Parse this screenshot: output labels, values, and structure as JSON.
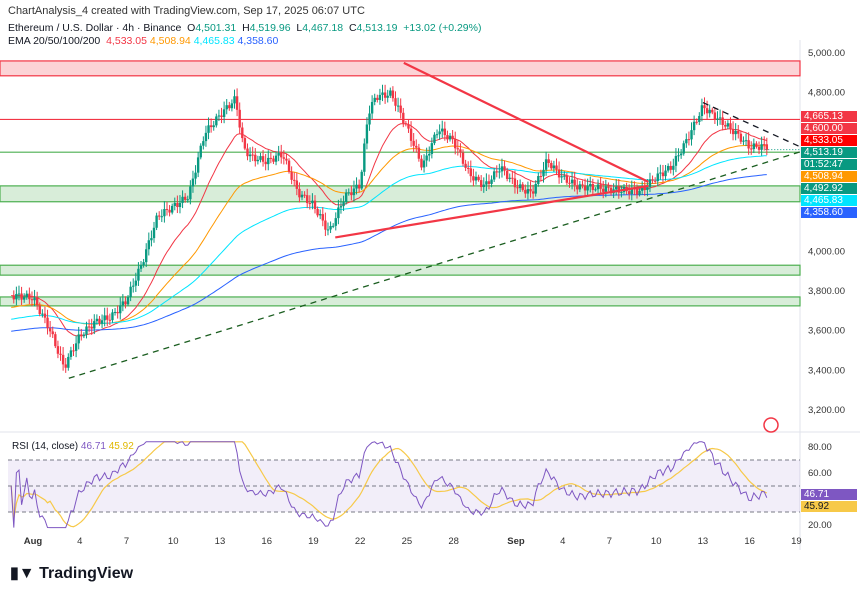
{
  "header": {
    "caption": "ChartAnalysis_4 created with TradingView.com, Sep 17, 2025 06:07 UTC"
  },
  "symbol": {
    "name": "Ethereum / U.S. Dollar · 4h · Binance",
    "o_label": "O",
    "open": "4,501.31",
    "h_label": "H",
    "high": "4,519.96",
    "l_label": "L",
    "low": "4,467.18",
    "c_label": "C",
    "close": "4,513.19",
    "change": "+13.02 (+0.29%)"
  },
  "ema": {
    "label": "EMA 20/50/100/200",
    "values": [
      "4,533.05",
      "4,508.94",
      "4,465.83",
      "4,358.60"
    ],
    "colors": [
      "#f23645",
      "#ff9800",
      "#00e5ff",
      "#2962ff"
    ]
  },
  "price_labels": [
    {
      "text": "4,665.13",
      "color": "#f23645"
    },
    {
      "text": "4,600.00",
      "color": "#f23645"
    },
    {
      "text": "4,533.05",
      "color": "#ff0000"
    },
    {
      "text": "4,513.19",
      "color": "#089981"
    },
    {
      "text": "01:52:47",
      "color": "#089981"
    },
    {
      "text": "4,508.94",
      "color": "#ff9800"
    },
    {
      "text": "4,492.92",
      "color": "#089981"
    },
    {
      "text": "4,465.83",
      "color": "#00e5ff"
    },
    {
      "text": "4,358.60",
      "color": "#2962ff"
    }
  ],
  "rsi": {
    "label": "RSI (14, close)",
    "value": "46.71",
    "ma": "45.92",
    "value_color": "#7e57c2",
    "ma_color": "#f7c948"
  },
  "logo": "TradingView",
  "colors": {
    "up": "#089981",
    "down": "#f23645",
    "support": "#4caf50",
    "resistance": "#f23645"
  },
  "chart_data": {
    "type": "candlestick",
    "title": "Ethereum / U.S. Dollar · 4h · Binance",
    "ylim": [
      3100,
      5050
    ],
    "y_ticks": [
      "5,000.00",
      "4,800.00",
      "4,000.00",
      "3,800.00",
      "3,600.00",
      "3,400.00",
      "3,200.00"
    ],
    "y_tick_values": [
      5000,
      4800,
      4000,
      3800,
      3600,
      3400,
      3200
    ],
    "x_ticks": [
      "Aug",
      "4",
      "7",
      "10",
      "13",
      "16",
      "19",
      "22",
      "25",
      "28",
      "Sep",
      "4",
      "7",
      "10",
      "13",
      "16",
      "19"
    ],
    "x_tick_days": [
      0,
      3,
      6,
      9,
      12,
      15,
      18,
      21,
      24,
      27,
      31,
      34,
      37,
      40,
      43,
      46,
      49
    ],
    "approx_close_by_day": [
      [
        -1,
        3800
      ],
      [
        0,
        3780
      ],
      [
        1,
        3620
      ],
      [
        2,
        3400
      ],
      [
        2.5,
        3480
      ],
      [
        3,
        3550
      ],
      [
        4,
        3620
      ],
      [
        5,
        3650
      ],
      [
        6,
        3750
      ],
      [
        7,
        3950
      ],
      [
        8,
        4200
      ],
      [
        9,
        4250
      ],
      [
        10,
        4300
      ],
      [
        11,
        4600
      ],
      [
        12,
        4680
      ],
      [
        13,
        4750
      ],
      [
        13.5,
        4500
      ],
      [
        14,
        4450
      ],
      [
        15,
        4430
      ],
      [
        16,
        4480
      ],
      [
        17,
        4300
      ],
      [
        18,
        4250
      ],
      [
        19,
        4120
      ],
      [
        20,
        4300
      ],
      [
        21,
        4350
      ],
      [
        21.5,
        4700
      ],
      [
        22,
        4780
      ],
      [
        23,
        4780
      ],
      [
        24,
        4600
      ],
      [
        25,
        4400
      ],
      [
        26,
        4600
      ],
      [
        27,
        4550
      ],
      [
        28,
        4400
      ],
      [
        29,
        4350
      ],
      [
        30,
        4450
      ],
      [
        31,
        4350
      ],
      [
        32,
        4300
      ],
      [
        33,
        4450
      ],
      [
        34,
        4350
      ],
      [
        35,
        4300
      ],
      [
        36,
        4300
      ],
      [
        37,
        4300
      ],
      [
        38,
        4310
      ],
      [
        39,
        4320
      ],
      [
        40,
        4400
      ],
      [
        41,
        4450
      ],
      [
        42,
        4580
      ],
      [
        43,
        4730
      ],
      [
        44,
        4650
      ],
      [
        45,
        4580
      ],
      [
        46,
        4500
      ],
      [
        47,
        4513
      ]
    ],
    "zones": [
      {
        "kind": "resistance",
        "from": 4885,
        "to": 4960
      },
      {
        "kind": "support",
        "from": 4250,
        "to": 4330
      },
      {
        "kind": "support",
        "from": 3880,
        "to": 3930
      },
      {
        "kind": "support",
        "from": 3725,
        "to": 3770
      }
    ],
    "levels": [
      {
        "kind": "resistance",
        "price": 4665
      },
      {
        "kind": "support",
        "price": 4500
      }
    ],
    "trendlines": [
      {
        "kind": "resistance",
        "from": [
          23.8,
          4950
        ],
        "to": [
          39.5,
          4350
        ],
        "style": "solid"
      },
      {
        "kind": "support",
        "from": [
          19.4,
          4070
        ],
        "to": [
          39.5,
          4330
        ],
        "style": "solid"
      },
      {
        "kind": "support",
        "from": [
          2.3,
          3360
        ],
        "to": [
          50,
          4520
        ],
        "style": "dashed"
      },
      {
        "kind": "resistance",
        "from": [
          43,
          4750
        ],
        "to": [
          50,
          4500
        ],
        "style": "dashed"
      }
    ],
    "rsi": {
      "ylim": [
        15,
        85
      ],
      "y_ticks": [
        "80.00",
        "60.00",
        "20.00"
      ],
      "y_tick_values": [
        80,
        60,
        20
      ],
      "bands": [
        30,
        50,
        70
      ]
    }
  }
}
